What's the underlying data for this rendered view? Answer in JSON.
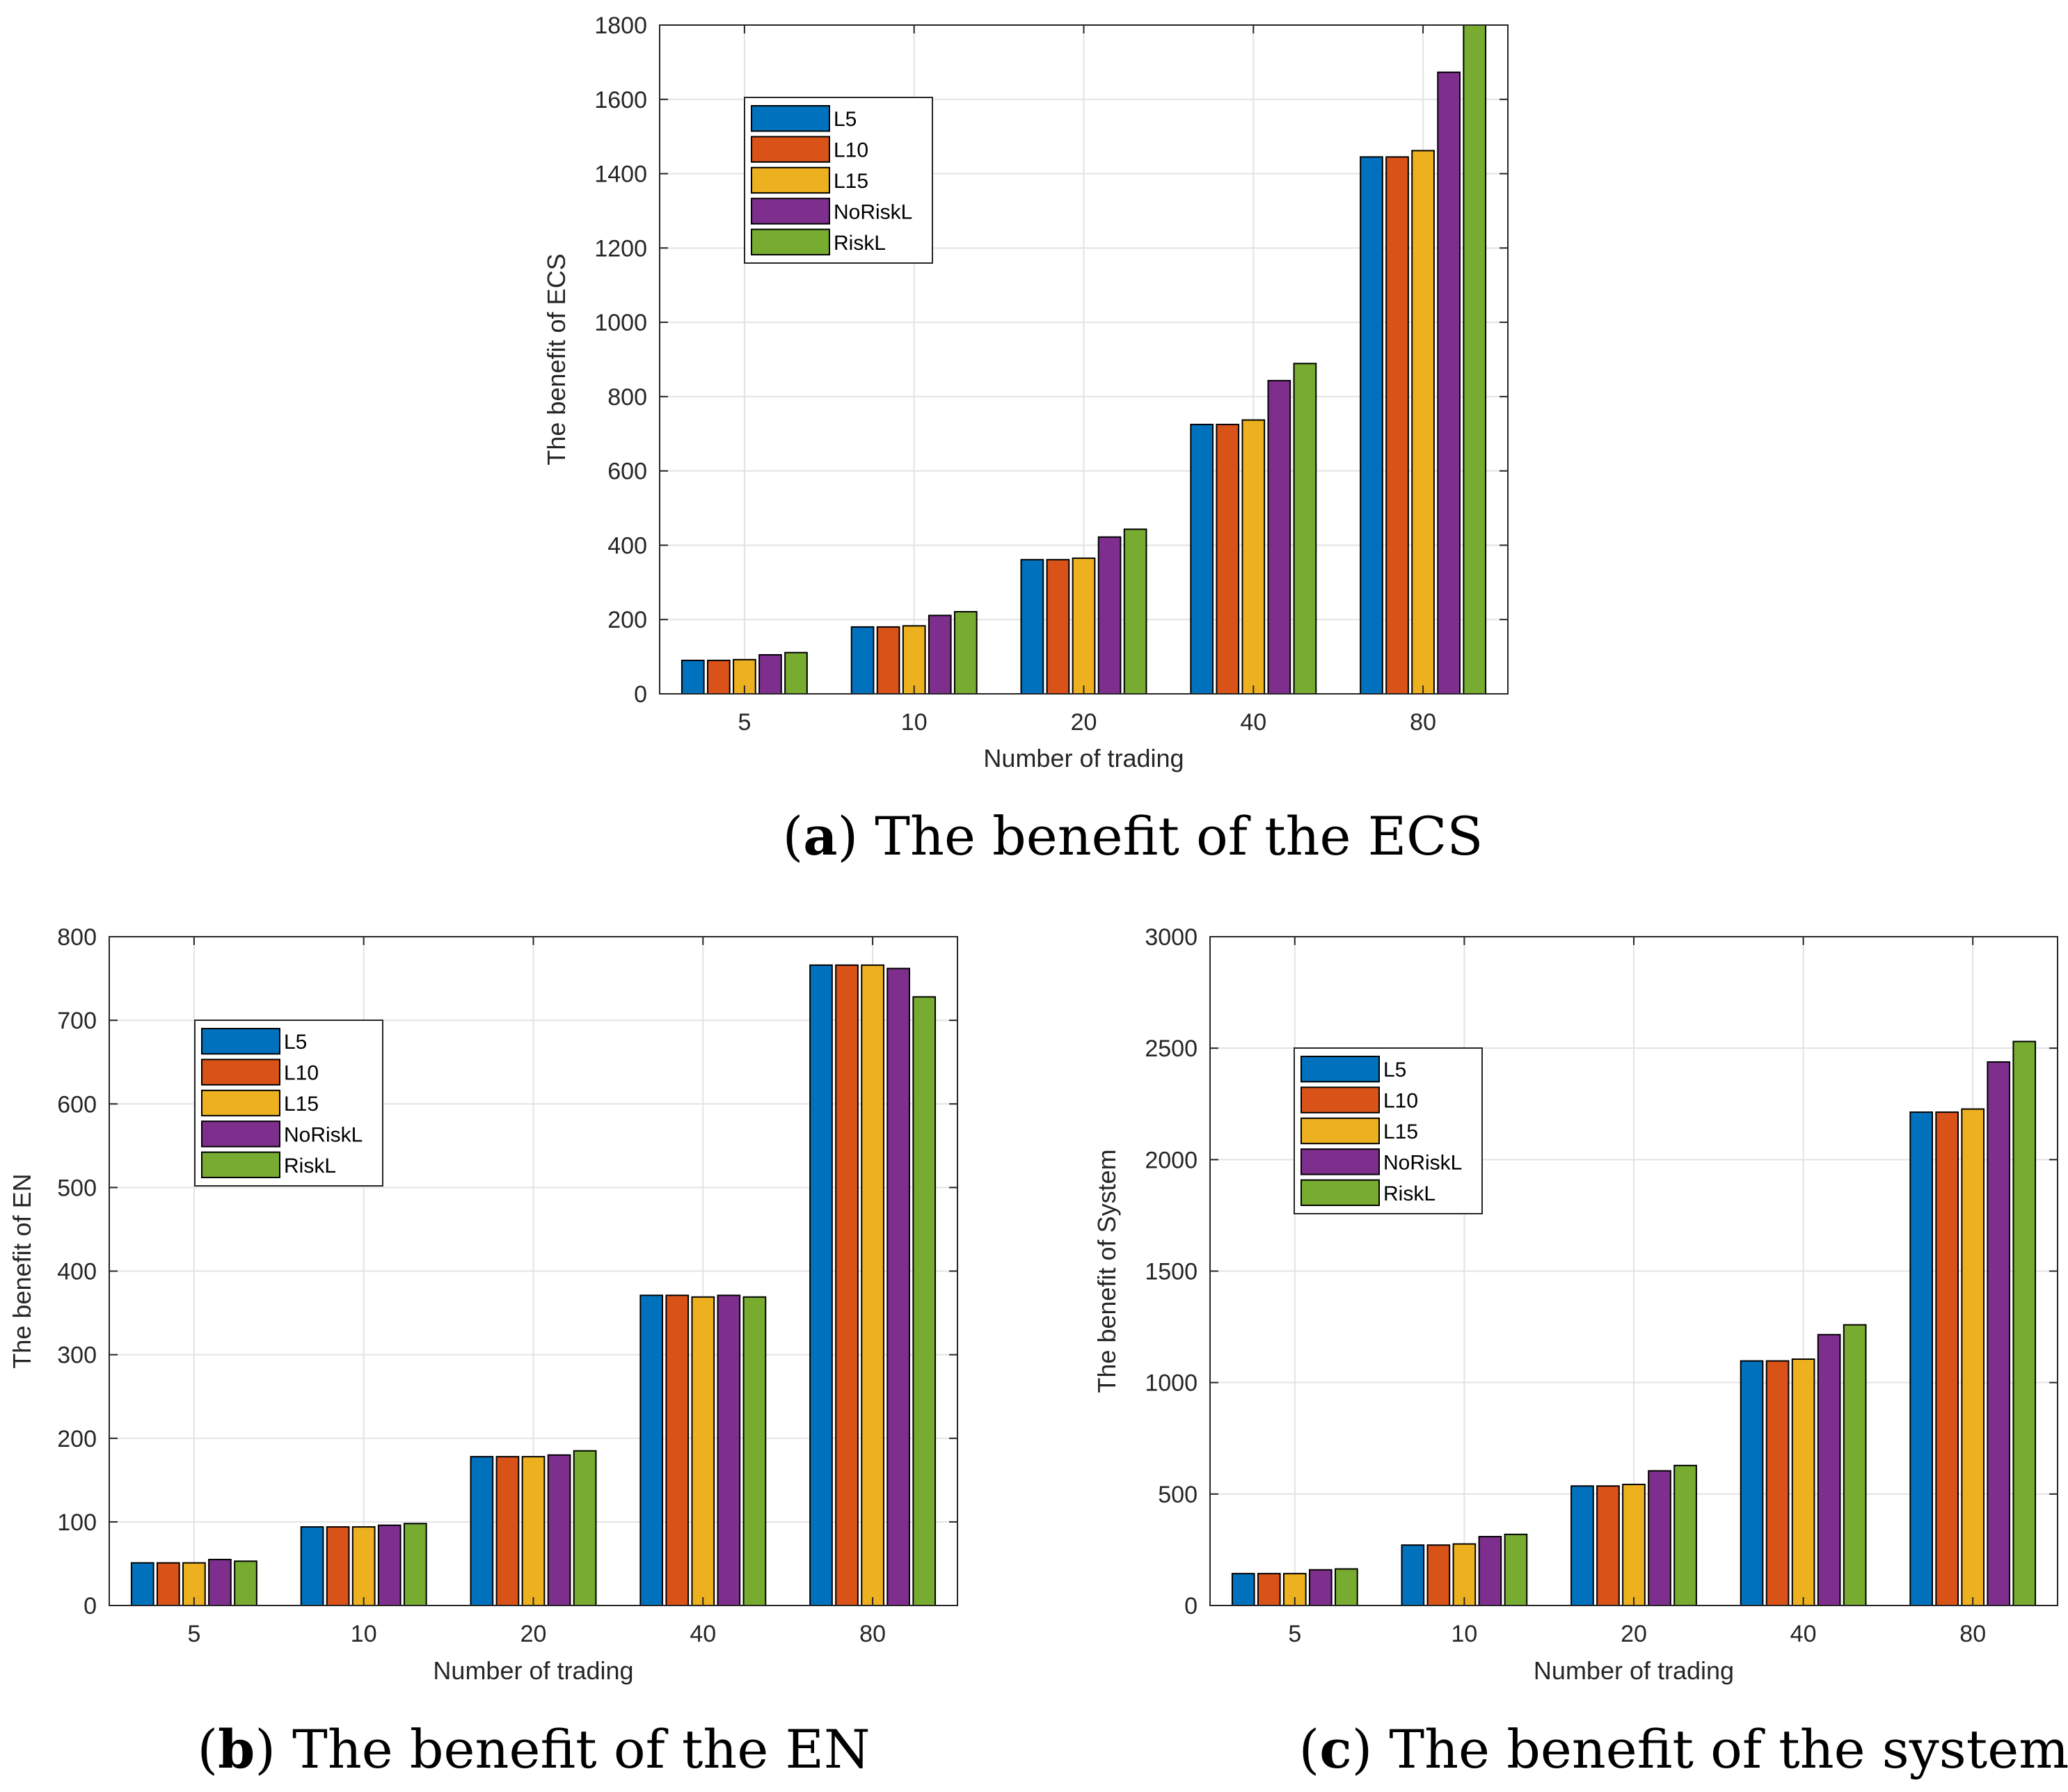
{
  "figure": {
    "series_colors": {
      "L5": "#0072BD",
      "L10": "#D95319",
      "L15": "#EDB120",
      "NoRiskL": "#7E2F8E",
      "RiskL": "#77AC30"
    }
  },
  "chart_data": [
    {
      "id": "a",
      "type": "bar",
      "caption": {
        "letter": "a",
        "text": "The benefit of the ECS"
      },
      "xlabel": "Number of trading",
      "ylabel": "The benefit of ECS",
      "categories": [
        "5",
        "10",
        "20",
        "40",
        "80"
      ],
      "ylim": [
        0,
        1800
      ],
      "yticks": [
        0,
        200,
        400,
        600,
        800,
        1000,
        1200,
        1400,
        1600,
        1800
      ],
      "grid": true,
      "legend_position": "top-left",
      "series": [
        {
          "name": "L5",
          "values": [
            90,
            180,
            361,
            725,
            1445
          ]
        },
        {
          "name": "L10",
          "values": [
            90,
            180,
            361,
            725,
            1445
          ]
        },
        {
          "name": "L15",
          "values": [
            92,
            183,
            365,
            737,
            1462
          ]
        },
        {
          "name": "NoRiskL",
          "values": [
            105,
            211,
            422,
            843,
            1673
          ]
        },
        {
          "name": "RiskL",
          "values": [
            111,
            221,
            443,
            889,
            1800
          ]
        }
      ]
    },
    {
      "id": "b",
      "type": "bar",
      "caption": {
        "letter": "b",
        "text": "The benefit of the EN"
      },
      "xlabel": "Number of trading",
      "ylabel": "The benefit of EN",
      "categories": [
        "5",
        "10",
        "20",
        "40",
        "80"
      ],
      "ylim": [
        0,
        800
      ],
      "yticks": [
        0,
        100,
        200,
        300,
        400,
        500,
        600,
        700,
        800
      ],
      "grid": true,
      "legend_position": "top-left",
      "series": [
        {
          "name": "L5",
          "values": [
            51,
            94,
            178,
            371,
            766
          ]
        },
        {
          "name": "L10",
          "values": [
            51,
            94,
            178,
            371,
            766
          ]
        },
        {
          "name": "L15",
          "values": [
            51,
            94,
            178,
            369,
            766
          ]
        },
        {
          "name": "NoRiskL",
          "values": [
            55,
            96,
            180,
            371,
            762
          ]
        },
        {
          "name": "RiskL",
          "values": [
            53,
            98,
            185,
            369,
            728
          ]
        }
      ]
    },
    {
      "id": "c",
      "type": "bar",
      "caption": {
        "letter": "c",
        "text": "The benefit of the system"
      },
      "xlabel": "Number of trading",
      "ylabel": "The benefit of System",
      "categories": [
        "5",
        "10",
        "20",
        "40",
        "80"
      ],
      "ylim": [
        0,
        3000
      ],
      "yticks": [
        0,
        500,
        1000,
        1500,
        2000,
        2500,
        3000
      ],
      "grid": true,
      "legend_position": "top-left",
      "series": [
        {
          "name": "L5",
          "values": [
            143,
            271,
            536,
            1097,
            2213
          ]
        },
        {
          "name": "L10",
          "values": [
            143,
            271,
            536,
            1097,
            2213
          ]
        },
        {
          "name": "L15",
          "values": [
            143,
            276,
            543,
            1105,
            2227
          ]
        },
        {
          "name": "NoRiskL",
          "values": [
            160,
            309,
            604,
            1215,
            2438
          ]
        },
        {
          "name": "RiskL",
          "values": [
            164,
            319,
            628,
            1259,
            2530
          ]
        }
      ]
    }
  ]
}
